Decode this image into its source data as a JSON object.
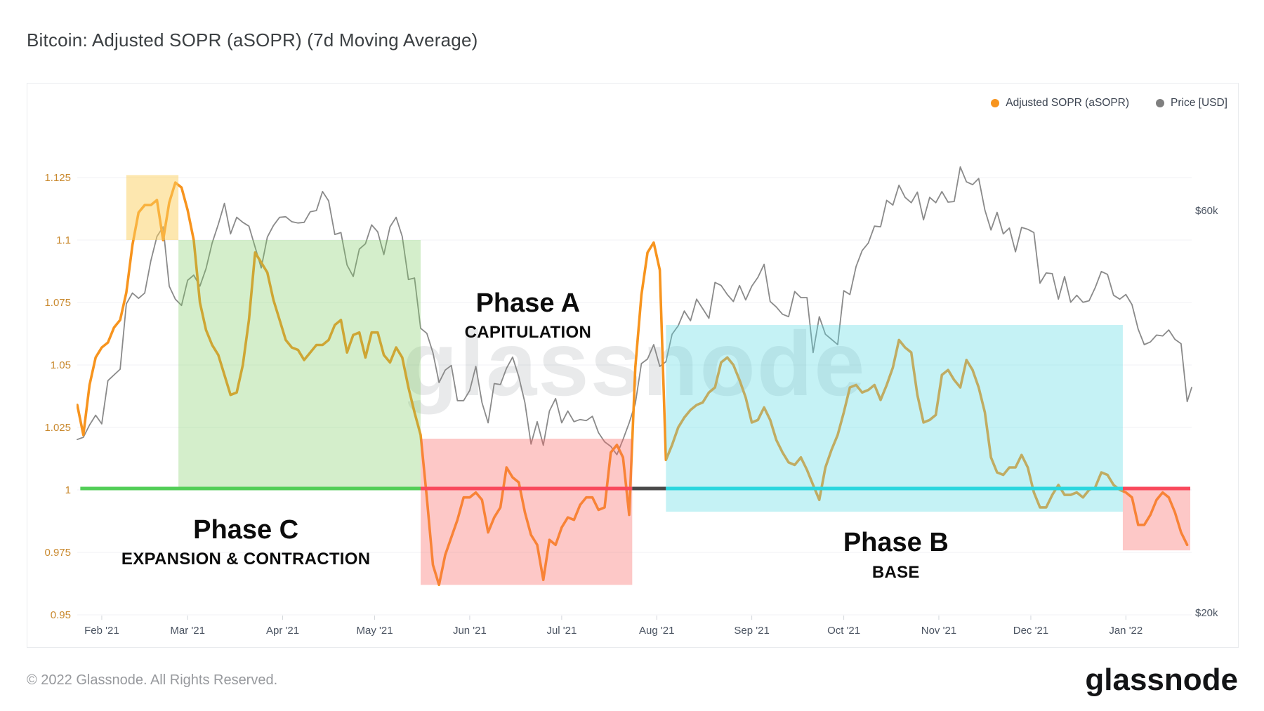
{
  "page": {
    "title": "Bitcoin: Adjusted SOPR (aSOPR) (7d Moving Average)",
    "footer_copyright": "© 2022 Glassnode. All Rights Reserved.",
    "brand_wordmark": "glassnode",
    "watermark": "glassnode"
  },
  "legend": [
    {
      "label": "Adjusted SOPR (aSOPR)",
      "color": "#F7941E"
    },
    {
      "label": "Price [USD]",
      "color": "#7F7F7F"
    }
  ],
  "chart_data": {
    "type": "line",
    "title": "Bitcoin: Adjusted SOPR (aSOPR) (7d Moving Average)",
    "watermark": "glassnode",
    "grid": true,
    "legend_position": "top-right",
    "left_axis": {
      "name": "Adjusted SOPR (aSOPR)",
      "label_color": "#C9892E",
      "tick_labels": [
        "1.125",
        "1.1",
        "1.075",
        "1.05",
        "1.025",
        "1",
        "0.975",
        "0.95"
      ],
      "tick_values": [
        1.125,
        1.1,
        1.075,
        1.05,
        1.025,
        1,
        0.975,
        0.95
      ],
      "range": [
        0.95,
        1.125
      ]
    },
    "right_axis": {
      "name": "Price [USD]",
      "scale": "log",
      "label_color": "#4A5361",
      "tick_labels": [
        "$60k",
        "$20k"
      ],
      "tick_values": [
        60000,
        20000
      ]
    },
    "x_axis": {
      "start": "2021-01-24",
      "end": "2022-01-22",
      "months": [
        {
          "label": "Feb '21",
          "date": "2021-02-01"
        },
        {
          "label": "Mar '21",
          "date": "2021-03-01"
        },
        {
          "label": "Apr '21",
          "date": "2021-04-01"
        },
        {
          "label": "May '21",
          "date": "2021-05-01"
        },
        {
          "label": "Jun '21",
          "date": "2021-06-01"
        },
        {
          "label": "Jul '21",
          "date": "2021-07-01"
        },
        {
          "label": "Aug '21",
          "date": "2021-08-01"
        },
        {
          "label": "Sep '21",
          "date": "2021-09-01"
        },
        {
          "label": "Oct '21",
          "date": "2021-10-01"
        },
        {
          "label": "Nov '21",
          "date": "2021-11-01"
        },
        {
          "label": "Dec '21",
          "date": "2021-12-01"
        },
        {
          "label": "Jan '22",
          "date": "2022-01-01"
        }
      ]
    },
    "series": [
      {
        "name": "Price [USD]",
        "axis": "right",
        "color": "#8A8A8A",
        "width": 1.8,
        "start": "2021-01-24",
        "step_days": 2,
        "unit": "kUSD",
        "values": [
          32.1,
          32.3,
          33.4,
          34.3,
          33.5,
          37.7,
          38.3,
          38.9,
          46.5,
          47.9,
          47.2,
          47.9,
          52.3,
          55.9,
          57.4,
          48.8,
          47.1,
          46.3,
          49.6,
          50.3,
          48.8,
          51.2,
          54.9,
          57.8,
          61.2,
          56.3,
          58.9,
          58.1,
          57.5,
          54.3,
          51.3,
          55.8,
          57.6,
          58.9,
          59.0,
          58.2,
          58.0,
          58.1,
          59.8,
          60.0,
          63.2,
          61.6,
          56.2,
          56.5,
          51.7,
          50.1,
          54.0,
          54.8,
          57.7,
          56.6,
          53.2,
          57.4,
          58.9,
          55.9,
          49.7,
          49.9,
          43.5,
          42.9,
          40.7,
          37.5,
          38.8,
          39.3,
          35.7,
          35.7,
          36.7,
          39.2,
          35.5,
          33.6,
          37.4,
          37.3,
          39.0,
          40.2,
          38.1,
          35.5,
          31.7,
          33.7,
          31.6,
          34.7,
          35.9,
          33.6,
          34.7,
          33.7,
          33.9,
          33.8,
          34.2,
          32.7,
          31.9,
          31.5,
          30.8,
          32.1,
          33.6,
          35.4,
          39.5,
          40.0,
          41.6,
          39.2,
          39.7,
          42.8,
          43.8,
          45.6,
          44.4,
          47.1,
          45.9,
          44.7,
          49.3,
          48.9,
          47.7,
          46.8,
          48.9,
          47.0,
          48.8,
          50.0,
          51.8,
          46.8,
          46.1,
          45.2,
          44.9,
          48.1,
          47.3,
          47.3,
          40.7,
          44.9,
          42.8,
          42.2,
          41.6,
          48.2,
          47.7,
          51.5,
          53.8,
          54.9,
          57.5,
          57.4,
          61.7,
          60.9,
          64.3,
          62.2,
          61.3,
          63.1,
          58.5,
          62.2,
          61.3,
          63.2,
          61.4,
          61.5,
          67.6,
          64.9,
          64.4,
          65.5,
          60.1,
          56.9,
          59.7,
          56.3,
          57.2,
          53.6,
          57.3,
          57.0,
          56.5,
          49.2,
          50.6,
          50.5,
          47.1,
          50.1,
          46.7,
          47.6,
          46.7,
          46.9,
          48.6,
          50.8,
          50.4,
          47.6,
          47.1,
          47.7,
          46.4,
          43.4,
          41.6,
          41.9,
          42.7,
          42.6,
          43.3,
          42.2,
          41.7,
          35.6,
          37.0
        ]
      },
      {
        "name": "Adjusted SOPR (aSOPR)",
        "axis": "left",
        "color": "#F7941E",
        "width": 3.6,
        "start": "2021-01-24",
        "step_days": 2,
        "values": [
          1.034,
          1.022,
          1.042,
          1.053,
          1.057,
          1.059,
          1.065,
          1.068,
          1.079,
          1.098,
          1.111,
          1.114,
          1.114,
          1.116,
          1.1,
          1.115,
          1.123,
          1.121,
          1.112,
          1.1,
          1.075,
          1.064,
          1.058,
          1.054,
          1.046,
          1.038,
          1.039,
          1.05,
          1.068,
          1.095,
          1.091,
          1.087,
          1.076,
          1.068,
          1.06,
          1.057,
          1.056,
          1.052,
          1.055,
          1.058,
          1.058,
          1.06,
          1.066,
          1.068,
          1.055,
          1.062,
          1.063,
          1.053,
          1.063,
          1.063,
          1.054,
          1.051,
          1.057,
          1.053,
          1.041,
          1.031,
          1.022,
          0.997,
          0.97,
          0.962,
          0.974,
          0.981,
          0.988,
          0.997,
          0.997,
          0.999,
          0.996,
          0.983,
          0.989,
          0.993,
          1.009,
          1.005,
          1.003,
          0.991,
          0.982,
          0.978,
          0.964,
          0.98,
          0.978,
          0.985,
          0.989,
          0.988,
          0.994,
          0.997,
          0.997,
          0.992,
          0.993,
          1.015,
          1.018,
          1.013,
          0.99,
          1.049,
          1.078,
          1.095,
          1.099,
          1.088,
          1.012,
          1.018,
          1.025,
          1.029,
          1.032,
          1.034,
          1.035,
          1.039,
          1.041,
          1.051,
          1.053,
          1.05,
          1.044,
          1.037,
          1.027,
          1.028,
          1.033,
          1.028,
          1.02,
          1.015,
          1.011,
          1.01,
          1.013,
          1.008,
          1.002,
          0.996,
          1.009,
          1.016,
          1.022,
          1.031,
          1.041,
          1.042,
          1.039,
          1.04,
          1.042,
          1.036,
          1.042,
          1.049,
          1.06,
          1.057,
          1.055,
          1.038,
          1.027,
          1.028,
          1.03,
          1.046,
          1.048,
          1.044,
          1.041,
          1.052,
          1.048,
          1.041,
          1.031,
          1.013,
          1.007,
          1.006,
          1.009,
          1.009,
          1.014,
          1.009,
          0.999,
          0.993,
          0.993,
          0.998,
          1.002,
          0.998,
          0.998,
          0.999,
          0.997,
          1.0,
          1.001,
          1.007,
          1.006,
          1.002,
          1.0,
          0.999,
          0.997,
          0.986,
          0.986,
          0.99,
          0.996,
          0.999,
          0.997,
          0.991,
          0.983,
          0.978
        ]
      }
    ],
    "annotations": {
      "shade_boxes": [
        {
          "name": "early-peak-yellow",
          "from": "2021-02-09",
          "to": "2021-02-26",
          "top": 1.126,
          "bottom": 1.1,
          "fill": "rgba(251,208,96,0.50)"
        },
        {
          "name": "phase-c-green",
          "from": "2021-02-26",
          "to": "2021-05-16",
          "top": 1.1,
          "bottom": 1.0005,
          "fill": "rgba(125,204,96,0.33)"
        },
        {
          "name": "phase-a-red",
          "from": "2021-05-16",
          "to": "2021-07-24",
          "top": 1.0205,
          "bottom": 0.962,
          "fill": "rgba(249,102,99,0.36)"
        },
        {
          "name": "phase-b-cyan",
          "from": "2021-08-04",
          "to": "2021-12-31",
          "top": 1.066,
          "bottom": 0.9913,
          "fill": "rgba(88,217,226,0.35)"
        },
        {
          "name": "end-red",
          "from": "2021-12-31",
          "to": "2022-01-22",
          "top": 1.0005,
          "bottom": 0.9758,
          "fill": "rgba(249,102,99,0.36)"
        }
      ],
      "baseline_value": 1.0,
      "baseline_segments": [
        {
          "from": "2021-01-25",
          "to": "2021-05-16",
          "color": "#52CE57"
        },
        {
          "from": "2021-05-16",
          "to": "2021-07-24",
          "color": "#F9495C"
        },
        {
          "from": "2021-07-24",
          "to": "2021-08-04",
          "color": "#4A4A4A"
        },
        {
          "from": "2021-08-04",
          "to": "2021-12-31",
          "color": "#2BD6DE"
        },
        {
          "from": "2021-12-31",
          "to": "2022-01-22",
          "color": "#F9495C"
        }
      ],
      "phases": [
        {
          "title": "Phase A",
          "subtitle": "CAPITULATION",
          "date": "2021-06-20",
          "title_value": 1.077,
          "subtitle_value": 1.0625
        },
        {
          "title": "Phase B",
          "subtitle": "BASE",
          "date": "2021-10-18",
          "title_value": 0.981,
          "subtitle_value": 0.9665
        },
        {
          "title": "Phase C",
          "subtitle": "EXPANSION & CONTRACTION",
          "date": "2021-03-20",
          "title_value": 0.986,
          "subtitle_value": 0.972
        }
      ]
    }
  }
}
